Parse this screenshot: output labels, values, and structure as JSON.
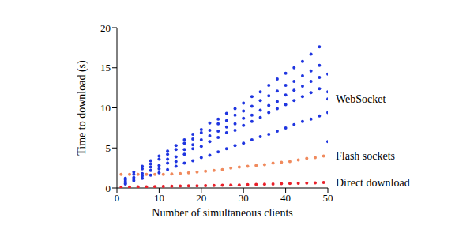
{
  "chart_data": {
    "type": "scatter",
    "x_label": "Number of simultaneous clients",
    "y_label": "Time to download (s)",
    "xlim": [
      0,
      50
    ],
    "xticks": [
      0,
      10,
      20,
      30,
      40,
      50
    ],
    "ylim": [
      0,
      20
    ],
    "yticks": [
      0,
      5,
      10,
      15,
      20
    ],
    "grid": false,
    "marker": "circle",
    "series": [
      {
        "name": "WebSocket",
        "color": "#1f35e0",
        "x": [
          2,
          2,
          2,
          2,
          2,
          4,
          4,
          4,
          4,
          4,
          6,
          6,
          6,
          6,
          6,
          8,
          8,
          8,
          8,
          8,
          10,
          10,
          10,
          10,
          10,
          12,
          12,
          12,
          12,
          12,
          14,
          14,
          14,
          14,
          14,
          16,
          16,
          16,
          16,
          16,
          18,
          18,
          18,
          18,
          18,
          20,
          20,
          20,
          20,
          20,
          22,
          22,
          22,
          22,
          22,
          24,
          24,
          24,
          24,
          24,
          26,
          26,
          26,
          26,
          26,
          28,
          28,
          28,
          28,
          28,
          30,
          30,
          30,
          30,
          30,
          32,
          32,
          32,
          32,
          32,
          34,
          34,
          34,
          34,
          34,
          36,
          36,
          36,
          36,
          36,
          38,
          38,
          38,
          38,
          38,
          40,
          40,
          40,
          40,
          40,
          42,
          42,
          42,
          42,
          42,
          44,
          44,
          44,
          44,
          44,
          46,
          46,
          46,
          46,
          46,
          48,
          48,
          48,
          48,
          48,
          50,
          50,
          50,
          50,
          50
        ],
        "values": [
          0.5,
          0.8,
          1.0,
          0.6,
          1.2,
          0.9,
          1.3,
          1.7,
          1.1,
          2.0,
          1.2,
          1.8,
          2.4,
          1.5,
          2.7,
          1.6,
          2.2,
          3.0,
          2.6,
          3.4,
          1.9,
          2.8,
          3.6,
          2.4,
          4.0,
          2.3,
          3.1,
          4.2,
          3.6,
          4.6,
          2.7,
          3.9,
          4.8,
          3.3,
          5.3,
          3.1,
          4.2,
          5.6,
          4.8,
          6.0,
          3.4,
          4.9,
          6.1,
          5.4,
          6.7,
          3.8,
          5.2,
          6.9,
          6.0,
          7.3,
          4.1,
          5.8,
          7.2,
          6.5,
          8.1,
          4.5,
          6.3,
          8.0,
          7.1,
          8.6,
          4.9,
          6.9,
          8.4,
          7.6,
          9.3,
          5.3,
          7.2,
          9.1,
          8.0,
          9.9,
          5.6,
          7.8,
          9.6,
          8.7,
          10.6,
          6.0,
          8.3,
          10.2,
          9.1,
          11.4,
          6.4,
          8.8,
          10.9,
          9.7,
          12.0,
          6.7,
          9.4,
          11.5,
          10.3,
          12.8,
          7.1,
          9.9,
          12.1,
          10.8,
          13.6,
          7.5,
          10.4,
          12.8,
          11.6,
          14.3,
          7.9,
          10.9,
          13.3,
          12.2,
          15.0,
          8.3,
          11.4,
          14.0,
          12.7,
          15.8,
          8.6,
          11.9,
          14.6,
          13.3,
          16.7,
          9.0,
          12.4,
          15.3,
          13.8,
          17.6,
          5.8,
          9.4,
          12.0,
          14.2,
          11.1
        ]
      },
      {
        "name": "Flash sockets",
        "color": "#f08a5d",
        "x": [
          1,
          3,
          5,
          7,
          9,
          11,
          13,
          15,
          17,
          19,
          21,
          23,
          25,
          27,
          29,
          31,
          33,
          35,
          37,
          39,
          41,
          43,
          45,
          47,
          49
        ],
        "values": [
          1.7,
          1.7,
          1.7,
          1.7,
          1.7,
          1.7,
          1.75,
          1.8,
          1.9,
          2.0,
          2.1,
          2.2,
          2.3,
          2.5,
          2.6,
          2.7,
          2.8,
          2.9,
          3.1,
          3.2,
          3.3,
          3.5,
          3.7,
          3.8,
          4.0
        ]
      },
      {
        "name": "Direct download",
        "color": "#e8202a",
        "x": [
          1,
          3,
          5,
          7,
          9,
          11,
          13,
          15,
          17,
          19,
          21,
          23,
          25,
          27,
          29,
          31,
          33,
          35,
          37,
          39,
          41,
          43,
          45,
          47,
          49
        ],
        "values": [
          0.1,
          0.12,
          0.14,
          0.16,
          0.18,
          0.2,
          0.22,
          0.24,
          0.26,
          0.28,
          0.3,
          0.32,
          0.34,
          0.36,
          0.38,
          0.41,
          0.44,
          0.47,
          0.5,
          0.53,
          0.56,
          0.59,
          0.62,
          0.65,
          0.7
        ]
      }
    ]
  }
}
